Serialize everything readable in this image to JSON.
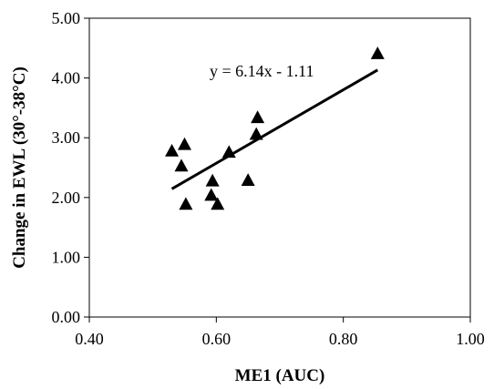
{
  "chart_data": {
    "type": "scatter",
    "title": "",
    "xlabel": "ME1 (AUC)",
    "ylabel": "Change in EWL (30°-38°C)",
    "xlim": [
      0.4,
      1.0
    ],
    "ylim": [
      0.0,
      5.0
    ],
    "x_ticks": [
      0.4,
      0.6,
      0.8,
      1.0
    ],
    "x_tick_labels": [
      "0.40",
      "0.60",
      "0.80",
      "1.00"
    ],
    "y_ticks": [
      0.0,
      1.0,
      2.0,
      3.0,
      4.0,
      5.0
    ],
    "y_tick_labels": [
      "0.00",
      "1.00",
      "2.00",
      "3.00",
      "4.00",
      "5.00"
    ],
    "grid": false,
    "legend": "none",
    "marker": "triangle",
    "marker_color": "#000000",
    "points": [
      {
        "x": 0.53,
        "y": 2.77
      },
      {
        "x": 0.545,
        "y": 2.52
      },
      {
        "x": 0.55,
        "y": 2.88
      },
      {
        "x": 0.552,
        "y": 1.88
      },
      {
        "x": 0.592,
        "y": 2.03
      },
      {
        "x": 0.594,
        "y": 2.27
      },
      {
        "x": 0.602,
        "y": 1.88
      },
      {
        "x": 0.62,
        "y": 2.75
      },
      {
        "x": 0.65,
        "y": 2.28
      },
      {
        "x": 0.663,
        "y": 3.05
      },
      {
        "x": 0.665,
        "y": 3.33
      },
      {
        "x": 0.854,
        "y": 4.4
      }
    ],
    "trendline": {
      "slope": 6.14,
      "intercept": -1.11,
      "x_start": 0.53,
      "x_end": 0.854,
      "label": "y = 6.14x - 1.11"
    }
  }
}
